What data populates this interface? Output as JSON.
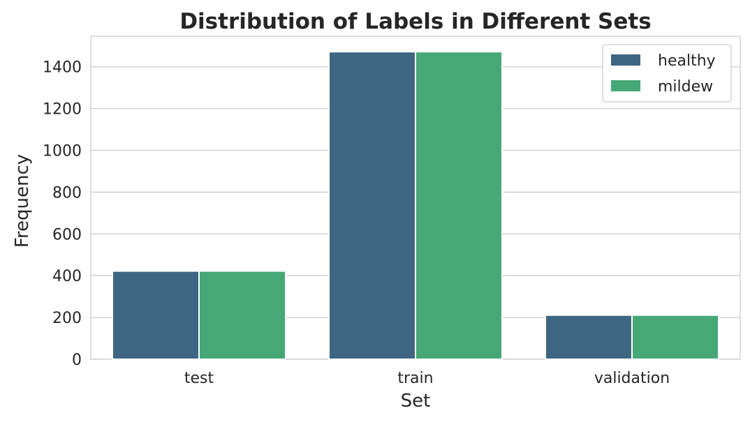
{
  "chart_data": {
    "type": "bar",
    "title": "Distribution of Labels in Different Sets",
    "xlabel": "Set",
    "ylabel": "Frequency",
    "categories": [
      "test",
      "train",
      "validation"
    ],
    "series": [
      {
        "name": "healthy",
        "color": "#3e6682",
        "values": [
          422,
          1472,
          211
        ]
      },
      {
        "name": "mildew",
        "color": "#46a877",
        "values": [
          422,
          1472,
          211
        ]
      }
    ],
    "ylim": [
      0,
      1546
    ],
    "yticks": [
      0,
      200,
      400,
      600,
      800,
      1000,
      1200,
      1400
    ],
    "grid": true,
    "legend_position": "top-right"
  }
}
